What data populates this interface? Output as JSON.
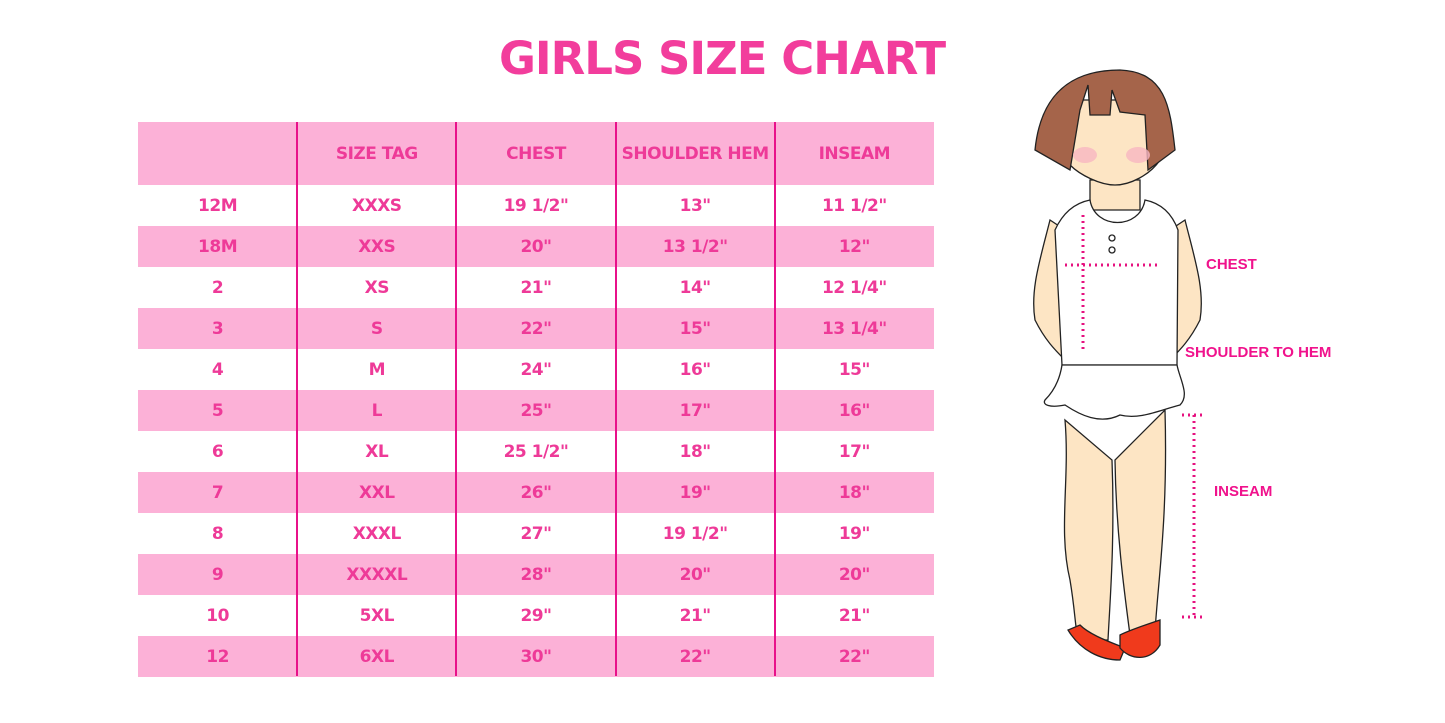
{
  "title": "GIRLS SIZE CHART",
  "chart_data": {
    "type": "table",
    "title": "GIRLS SIZE CHART",
    "columns": [
      "",
      "SIZE TAG",
      "CHEST",
      "SHOULDER HEM",
      "INSEAM"
    ],
    "rows": [
      [
        "12M",
        "XXXS",
        "19 1/2\"",
        "13\"",
        "11 1/2\""
      ],
      [
        "18M",
        "XXS",
        "20\"",
        "13 1/2\"",
        "12\""
      ],
      [
        "2",
        "XS",
        "21\"",
        "14\"",
        "12 1/4\""
      ],
      [
        "3",
        "S",
        "22\"",
        "15\"",
        "13 1/4\""
      ],
      [
        "4",
        "M",
        "24\"",
        "16\"",
        "15\""
      ],
      [
        "5",
        "L",
        "25\"",
        "17\"",
        "16\""
      ],
      [
        "6",
        "XL",
        "25 1/2\"",
        "18\"",
        "17\""
      ],
      [
        "7",
        "XXL",
        "26\"",
        "19\"",
        "18\""
      ],
      [
        "8",
        "XXXL",
        "27\"",
        "19 1/2\"",
        "19\""
      ],
      [
        "9",
        "XXXXL",
        "28\"",
        "20\"",
        "20\""
      ],
      [
        "10",
        "5XL",
        "29\"",
        "21\"",
        "21\""
      ],
      [
        "12",
        "6XL",
        "30\"",
        "22\"",
        "22\""
      ]
    ]
  },
  "diagram": {
    "labels": {
      "chest": "CHEST",
      "shoulder": "SHOULDER TO HEM",
      "inseam": "INSEAM"
    }
  },
  "colors": {
    "text": "#ee3a98",
    "stripe": "#fcb1d7",
    "divider": "#e8118a"
  }
}
